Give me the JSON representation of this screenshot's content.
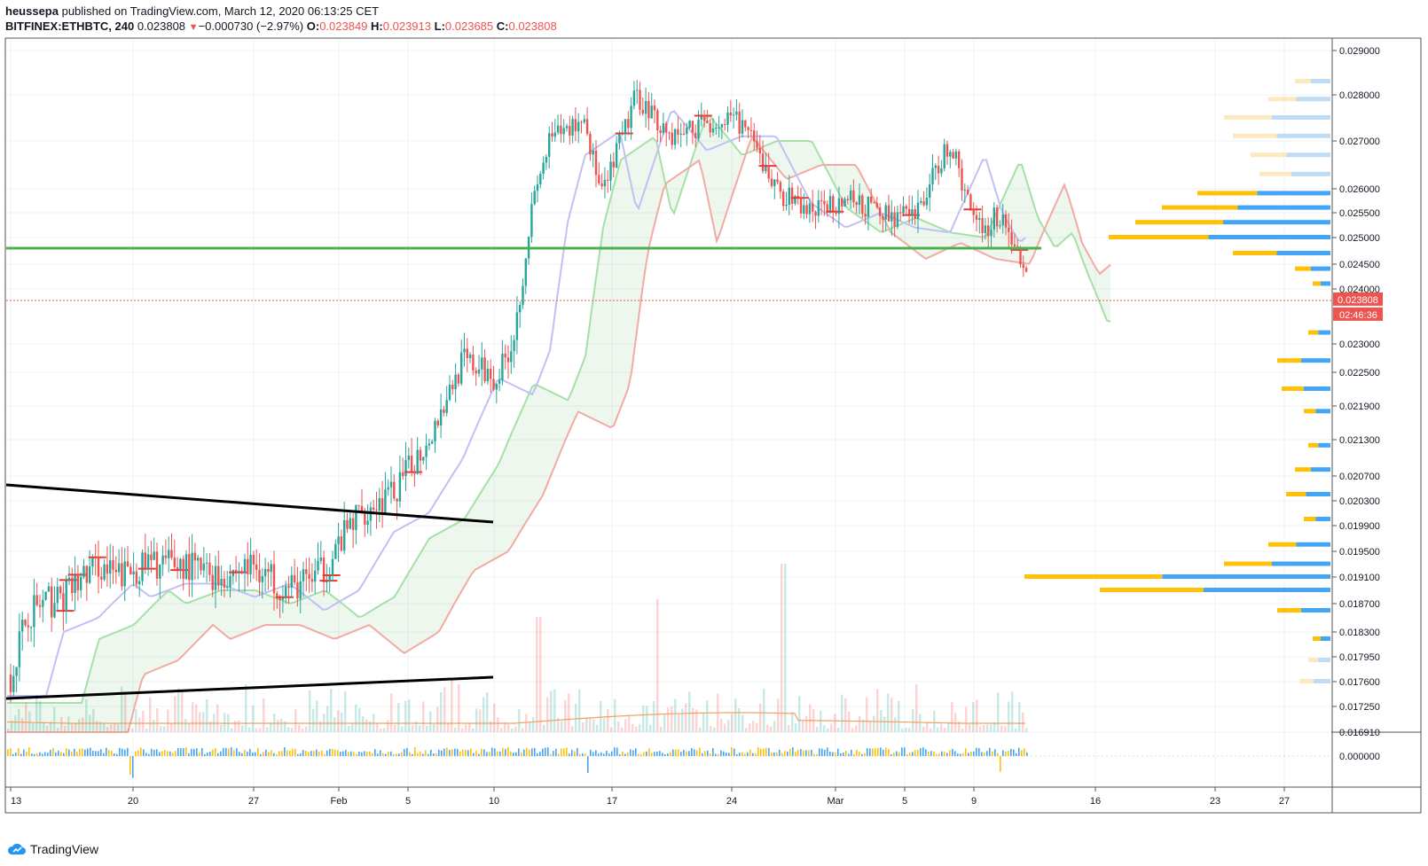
{
  "header": {
    "author": "heussepa",
    "published_text": " published on TradingView.com, March 12, 2020 06:13:25 CET",
    "symbol": "BITFINEX:ETHBTC, 240",
    "last": "0.023808",
    "change": "−0.000730 (−2.97%)",
    "o_label": "O:",
    "o_value": "0.023849",
    "h_label": "H:",
    "h_value": "0.023913",
    "l_label": "L:",
    "l_value": "0.023685",
    "c_label": "C:",
    "c_value": "0.023808"
  },
  "price_axis": {
    "ticks": [
      {
        "label": "0.029000",
        "v": 0.029
      },
      {
        "label": "0.028000",
        "v": 0.028
      },
      {
        "label": "0.027000",
        "v": 0.027
      },
      {
        "label": "0.026000",
        "v": 0.026
      },
      {
        "label": "0.025500",
        "v": 0.0255
      },
      {
        "label": "0.025000",
        "v": 0.025
      },
      {
        "label": "0.024500",
        "v": 0.0245
      },
      {
        "label": "0.024000",
        "v": 0.024
      },
      {
        "label": "0.023000",
        "v": 0.023
      },
      {
        "label": "0.022500",
        "v": 0.0225
      },
      {
        "label": "0.021900",
        "v": 0.0219
      },
      {
        "label": "0.021300",
        "v": 0.0213
      },
      {
        "label": "0.020700",
        "v": 0.0207
      },
      {
        "label": "0.020300",
        "v": 0.0203
      },
      {
        "label": "0.019900",
        "v": 0.0199
      },
      {
        "label": "0.019500",
        "v": 0.0195
      },
      {
        "label": "0.019100",
        "v": 0.0191
      },
      {
        "label": "0.018700",
        "v": 0.0187
      },
      {
        "label": "0.018300",
        "v": 0.0183
      },
      {
        "label": "0.017950",
        "v": 0.01795
      },
      {
        "label": "0.017600",
        "v": 0.0176
      },
      {
        "label": "0.017250",
        "v": 0.01725
      },
      {
        "label": "0.016910",
        "v": 0.01691
      }
    ],
    "last_price_label": "0.023808",
    "countdown_label": "02:46:36"
  },
  "oscillator_axis": {
    "label": "0.000000"
  },
  "time_axis": {
    "labels": [
      "13",
      "20",
      "27",
      "Feb",
      "5",
      "10",
      "17",
      "24",
      "Mar",
      "5",
      "9",
      "16",
      "23",
      "27"
    ]
  },
  "footer": {
    "brand": "TradingView"
  },
  "colors": {
    "up": "#26a69a",
    "down": "#ef5350",
    "support": "#4caf50",
    "trend": "#000000",
    "vp_up": "#42a5f5",
    "vp_down": "#ffc107"
  },
  "chart_data": {
    "type": "candlestick",
    "symbol": "BITFINEX:ETHBTC",
    "interval": "240",
    "ylim": [
      0.01691,
      0.0292
    ],
    "x_labels": [
      "13",
      "20",
      "27",
      "Feb",
      "5",
      "10",
      "17",
      "24",
      "Mar",
      "5",
      "9",
      "16",
      "23",
      "27"
    ],
    "support_level": 0.0248,
    "last_price": 0.023808,
    "close_path": [
      [
        "Jan 13",
        0.0177
      ],
      [
        "Jan 14",
        0.0186
      ],
      [
        "Jan 16",
        0.0188
      ],
      [
        "Jan 18",
        0.0193
      ],
      [
        "Jan 19",
        0.0191
      ],
      [
        "Jan 21",
        0.0193
      ],
      [
        "Jan 23",
        0.0193
      ],
      [
        "Jan 25",
        0.0191
      ],
      [
        "Jan 27",
        0.0193
      ],
      [
        "Jan 29",
        0.0189
      ],
      [
        "Jan 31",
        0.0192
      ],
      [
        "Feb 2",
        0.0201
      ],
      [
        "Feb 4",
        0.0204
      ],
      [
        "Feb 6",
        0.0213
      ],
      [
        "Feb 8",
        0.0227
      ],
      [
        "Feb 10",
        0.0224
      ],
      [
        "Feb 11",
        0.0232
      ],
      [
        "Feb 12",
        0.0256
      ],
      [
        "Feb 13",
        0.027
      ],
      [
        "Feb 15",
        0.0275
      ],
      [
        "Feb 16",
        0.0258
      ],
      [
        "Feb 18",
        0.028
      ],
      [
        "Feb 20",
        0.0271
      ],
      [
        "Feb 22",
        0.0274
      ],
      [
        "Feb 24",
        0.0274
      ],
      [
        "Feb 26",
        0.026
      ],
      [
        "Feb 28",
        0.0255
      ],
      [
        "Mar 1",
        0.0258
      ],
      [
        "Mar 3",
        0.0255
      ],
      [
        "Mar 5",
        0.0254
      ],
      [
        "Mar 7",
        0.027
      ],
      [
        "Mar 8",
        0.0258
      ],
      [
        "Mar 9",
        0.0252
      ],
      [
        "Mar 10",
        0.0255
      ],
      [
        "Mar 11",
        0.0246
      ],
      [
        "Mar 12",
        0.023808
      ]
    ]
  }
}
